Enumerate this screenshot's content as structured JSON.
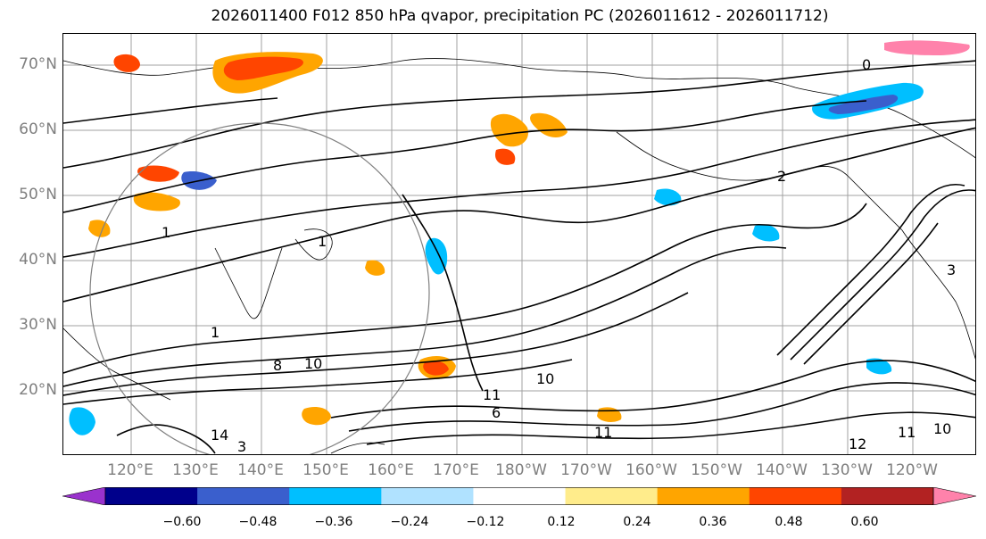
{
  "title": "2026011400 F012 850 hPa qvapor, precipitation PC (2026011612 - 2026011712)",
  "latitude_labels": [
    "70°N",
    "60°N",
    "50°N",
    "40°N",
    "30°N",
    "20°N"
  ],
  "longitude_labels": [
    "120°E",
    "130°E",
    "140°E",
    "150°E",
    "160°E",
    "170°E",
    "180°W",
    "170°W",
    "160°W",
    "150°W",
    "140°W",
    "130°W",
    "120°W"
  ],
  "contour_labels": [
    "0",
    "2",
    "1",
    "1",
    "1",
    "3",
    "3",
    "14",
    "8",
    "10",
    "11",
    "10",
    "6",
    "11",
    "12",
    "10",
    "11"
  ],
  "colorbar": {
    "colors": [
      "#9a32cd",
      "#00008b",
      "#3a5fcd",
      "#00bfff",
      "#b0e2ff",
      "#ffffff",
      "#ffec8b",
      "#ffa500",
      "#ff4500",
      "#b22222",
      "#ff82ab"
    ],
    "tick_labels": [
      "−0.60",
      "−0.48",
      "−0.36",
      "−0.24",
      "−0.12",
      "0.12",
      "0.24",
      "0.36",
      "0.48",
      "0.60"
    ],
    "levels": [
      -0.6,
      -0.48,
      -0.36,
      -0.24,
      -0.12,
      0.12,
      0.24,
      0.36,
      0.48,
      0.6
    ]
  },
  "colors": {
    "axis_label": "#7f7f7f",
    "contour": "#000000",
    "gridline": "#a0a0a0",
    "coastline": "#000000"
  }
}
